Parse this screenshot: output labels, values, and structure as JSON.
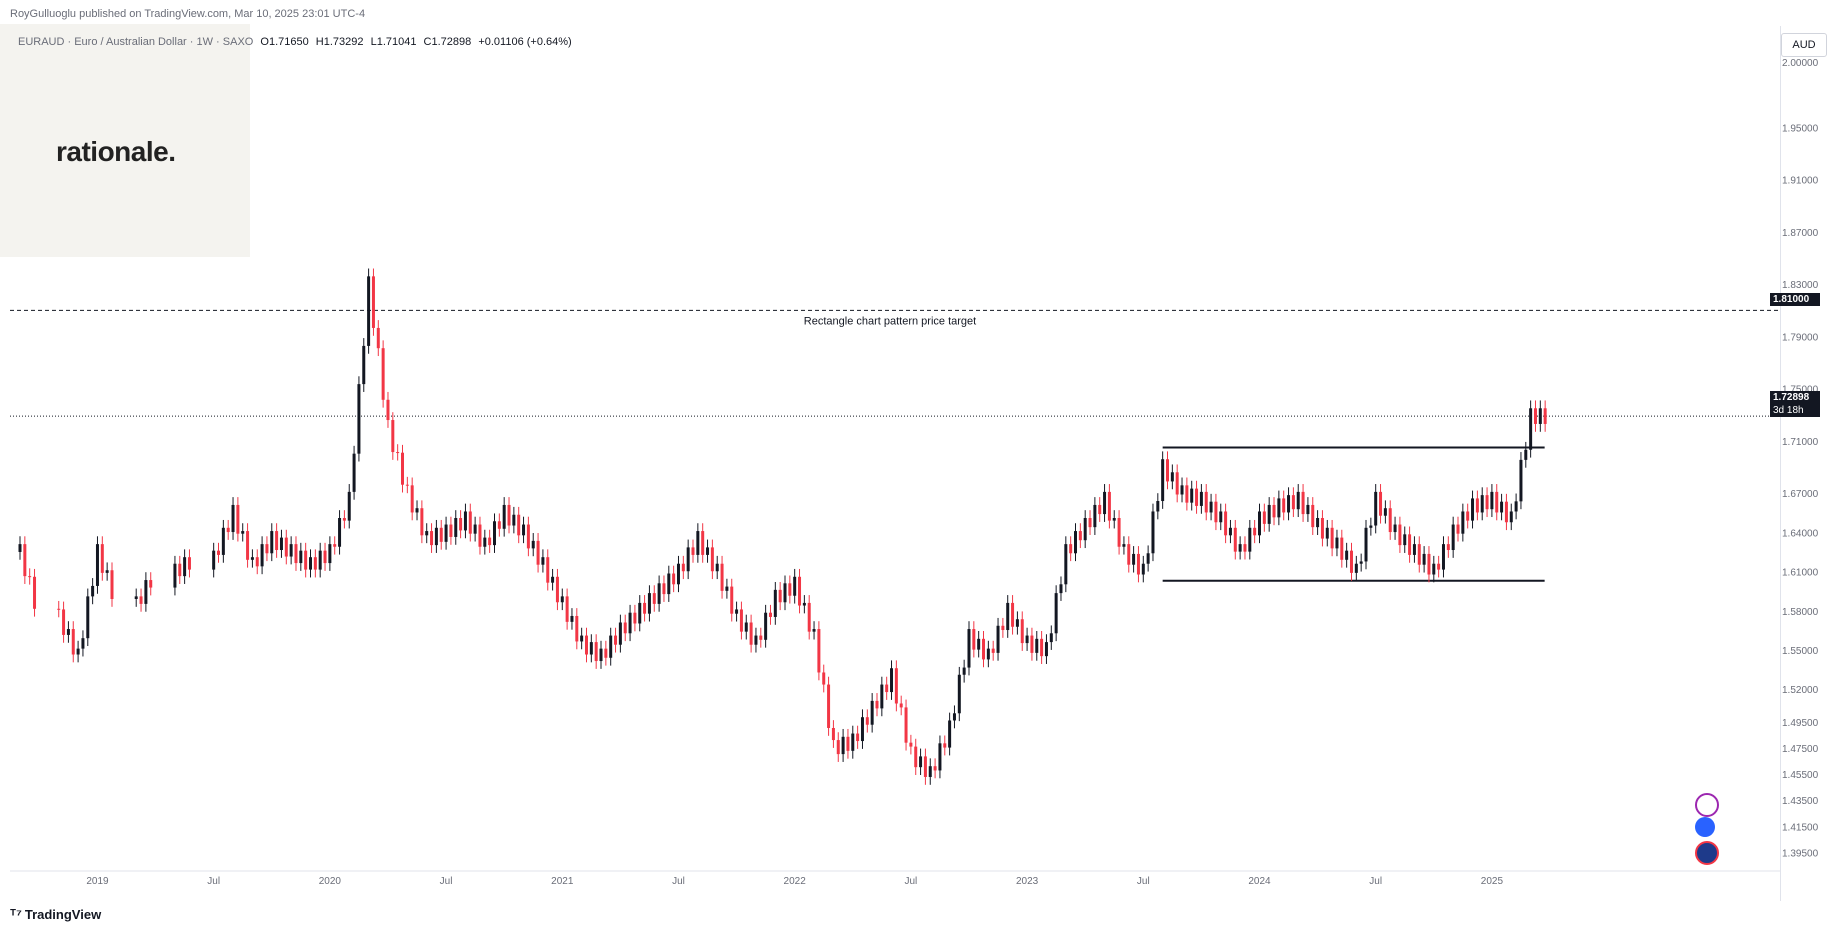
{
  "header": {
    "published": "RoyGulluoglu published on TradingView.com, Mar 10, 2025 23:01 UTC-4"
  },
  "logo": {
    "text": "rationale."
  },
  "legend": {
    "symbol": "EURAUD · Euro / Australian Dollar · 1W · SAXO",
    "open": "O1.71650",
    "high": "H1.73292",
    "low": "L1.71041",
    "close": "C1.72898",
    "change": "+0.01106 (+0.64%)"
  },
  "currency_button": "AUD",
  "price_label": {
    "value": "1.72898",
    "countdown": "3d 18h"
  },
  "target_label": "1.81000",
  "annotation": "Rectangle chart pattern price target",
  "brand": "TradingView",
  "icons": [
    "lightning-icon",
    "globe-icon",
    "flag-icon"
  ],
  "colors": {
    "up": "#131722",
    "down": "#f23645",
    "grid": "#f0f3fa",
    "axis": "#6a6d78"
  },
  "chart_data": {
    "type": "candlestick",
    "ylim": [
      1.38,
      2.02
    ],
    "y_ticks": [
      "2.00000",
      "1.95000",
      "1.91000",
      "1.87000",
      "1.83000",
      "1.79000",
      "1.75000",
      "1.71000",
      "1.67000",
      "1.64000",
      "1.61000",
      "1.58000",
      "1.55000",
      "1.52000",
      "1.49500",
      "1.47500",
      "1.45500",
      "1.43500",
      "1.41500",
      "1.39500"
    ],
    "x_ticks": [
      "2019",
      "Jul",
      "2020",
      "Jul",
      "2021",
      "Jul",
      "2022",
      "Jul",
      "2023",
      "Jul",
      "2024",
      "Jul",
      "2025"
    ],
    "lines": [
      {
        "name": "target",
        "value": 1.81,
        "style": "dashed"
      },
      {
        "name": "current",
        "value": 1.72898,
        "style": "dotted"
      },
      {
        "name": "range-top",
        "value": 1.705,
        "style": "solid",
        "from": "2023-08",
        "to": "2025-03"
      },
      {
        "name": "range-bottom",
        "value": 1.603,
        "style": "solid",
        "from": "2023-08",
        "to": "2025-03"
      }
    ],
    "series": [
      {
        "date": "2018-09",
        "close": 1.625
      },
      {
        "date": "2018-11",
        "close": 1.575
      },
      {
        "date": "2018-12",
        "close": 1.545
      },
      {
        "date": "2019-01",
        "close": 1.625
      },
      {
        "date": "2019-03",
        "close": 1.585
      },
      {
        "date": "2019-05",
        "close": 1.61
      },
      {
        "date": "2019-07",
        "close": 1.62
      },
      {
        "date": "2019-08",
        "close": 1.655
      },
      {
        "date": "2019-09",
        "close": 1.615
      },
      {
        "date": "2019-10",
        "close": 1.635
      },
      {
        "date": "2019-11",
        "close": 1.625
      },
      {
        "date": "2019-12",
        "close": 1.615
      },
      {
        "date": "2020-01",
        "close": 1.625
      },
      {
        "date": "2020-02",
        "close": 1.665
      },
      {
        "date": "2020-03",
        "close": 1.83
      },
      {
        "date": "2020-04",
        "close": 1.72
      },
      {
        "date": "2020-05",
        "close": 1.67
      },
      {
        "date": "2020-06",
        "close": 1.635
      },
      {
        "date": "2020-07",
        "close": 1.64
      },
      {
        "date": "2020-08",
        "close": 1.65
      },
      {
        "date": "2020-09",
        "close": 1.63
      },
      {
        "date": "2020-10",
        "close": 1.655
      },
      {
        "date": "2020-11",
        "close": 1.64
      },
      {
        "date": "2020-12",
        "close": 1.615
      },
      {
        "date": "2021-01",
        "close": 1.585
      },
      {
        "date": "2021-02",
        "close": 1.555
      },
      {
        "date": "2021-03",
        "close": 1.545
      },
      {
        "date": "2021-04",
        "close": 1.565
      },
      {
        "date": "2021-05",
        "close": 1.58
      },
      {
        "date": "2021-06",
        "close": 1.595
      },
      {
        "date": "2021-07",
        "close": 1.61
      },
      {
        "date": "2021-08",
        "close": 1.635
      },
      {
        "date": "2021-09",
        "close": 1.61
      },
      {
        "date": "2021-10",
        "close": 1.575
      },
      {
        "date": "2021-11",
        "close": 1.555
      },
      {
        "date": "2021-12",
        "close": 1.59
      },
      {
        "date": "2022-01",
        "close": 1.6
      },
      {
        "date": "2022-02",
        "close": 1.56
      },
      {
        "date": "2022-03",
        "close": 1.475
      },
      {
        "date": "2022-04",
        "close": 1.48
      },
      {
        "date": "2022-05",
        "close": 1.505
      },
      {
        "date": "2022-06",
        "close": 1.53
      },
      {
        "date": "2022-07",
        "close": 1.47
      },
      {
        "date": "2022-08",
        "close": 1.455
      },
      {
        "date": "2022-09",
        "close": 1.49
      },
      {
        "date": "2022-10",
        "close": 1.56
      },
      {
        "date": "2022-11",
        "close": 1.545
      },
      {
        "date": "2022-12",
        "close": 1.58
      },
      {
        "date": "2023-01",
        "close": 1.555
      },
      {
        "date": "2023-02",
        "close": 1.55
      },
      {
        "date": "2023-03",
        "close": 1.625
      },
      {
        "date": "2023-04",
        "close": 1.645
      },
      {
        "date": "2023-05",
        "close": 1.665
      },
      {
        "date": "2023-06",
        "close": 1.625
      },
      {
        "date": "2023-07",
        "close": 1.61
      },
      {
        "date": "2023-08",
        "close": 1.69
      },
      {
        "date": "2023-09",
        "close": 1.67
      },
      {
        "date": "2023-10",
        "close": 1.665
      },
      {
        "date": "2023-11",
        "close": 1.65
      },
      {
        "date": "2023-12",
        "close": 1.625
      },
      {
        "date": "2024-01",
        "close": 1.65
      },
      {
        "date": "2024-02",
        "close": 1.66
      },
      {
        "date": "2024-03",
        "close": 1.665
      },
      {
        "date": "2024-04",
        "close": 1.645
      },
      {
        "date": "2024-05",
        "close": 1.63
      },
      {
        "date": "2024-06",
        "close": 1.61
      },
      {
        "date": "2024-07",
        "close": 1.665
      },
      {
        "date": "2024-08",
        "close": 1.64
      },
      {
        "date": "2024-09",
        "close": 1.625
      },
      {
        "date": "2024-10",
        "close": 1.61
      },
      {
        "date": "2024-11",
        "close": 1.64
      },
      {
        "date": "2024-12",
        "close": 1.66
      },
      {
        "date": "2025-01",
        "close": 1.665
      },
      {
        "date": "2025-02",
        "close": 1.65
      },
      {
        "date": "2025-03",
        "close": 1.729
      }
    ]
  }
}
